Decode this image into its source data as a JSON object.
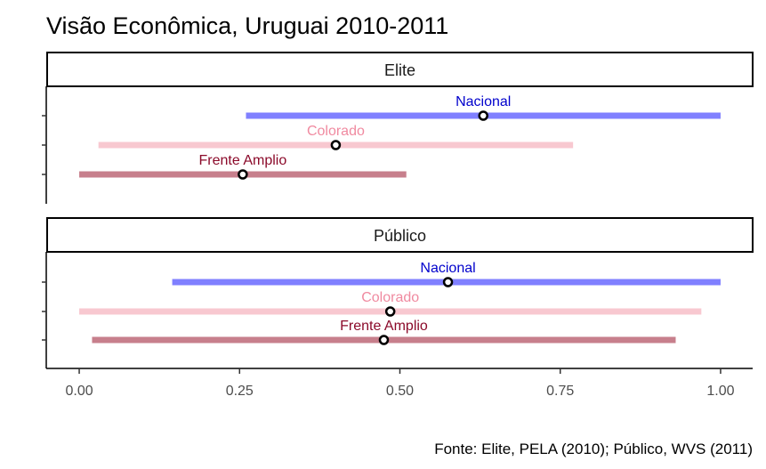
{
  "chart_data": {
    "type": "interval",
    "title": "Visão Econômica, Uruguai 2010-2011",
    "caption": "Fonte: Elite, PELA (2010); Público, WVS (2011)",
    "xlabel": "",
    "ylabel": "",
    "xlim": [
      -0.05,
      1.05
    ],
    "x_ticks": [
      "0.00",
      "0.25",
      "0.50",
      "0.75",
      "1.00"
    ],
    "x_tick_values": [
      0,
      0.25,
      0.5,
      0.75,
      1.0
    ],
    "grid": false,
    "colors": {
      "Nacional": "#8080ff",
      "Colorado": "#f8c8d0",
      "Frente Amplio": "#c77f8c"
    },
    "label_colors": {
      "Nacional": "#0000cc",
      "Colorado": "#f08aa0",
      "Frente Amplio": "#8b0a2a"
    },
    "panels": [
      {
        "label": "Elite",
        "series": [
          {
            "name": "Nacional",
            "low": 0.26,
            "point": 0.63,
            "high": 1.0
          },
          {
            "name": "Colorado",
            "low": 0.03,
            "point": 0.4,
            "high": 0.77
          },
          {
            "name": "Frente Amplio",
            "low": 0.0,
            "point": 0.255,
            "high": 0.51
          }
        ]
      },
      {
        "label": "Público",
        "series": [
          {
            "name": "Nacional",
            "low": 0.145,
            "point": 0.575,
            "high": 1.0
          },
          {
            "name": "Colorado",
            "low": 0.0,
            "point": 0.485,
            "high": 0.97
          },
          {
            "name": "Frente Amplio",
            "low": 0.02,
            "point": 0.475,
            "high": 0.93
          }
        ]
      }
    ]
  }
}
